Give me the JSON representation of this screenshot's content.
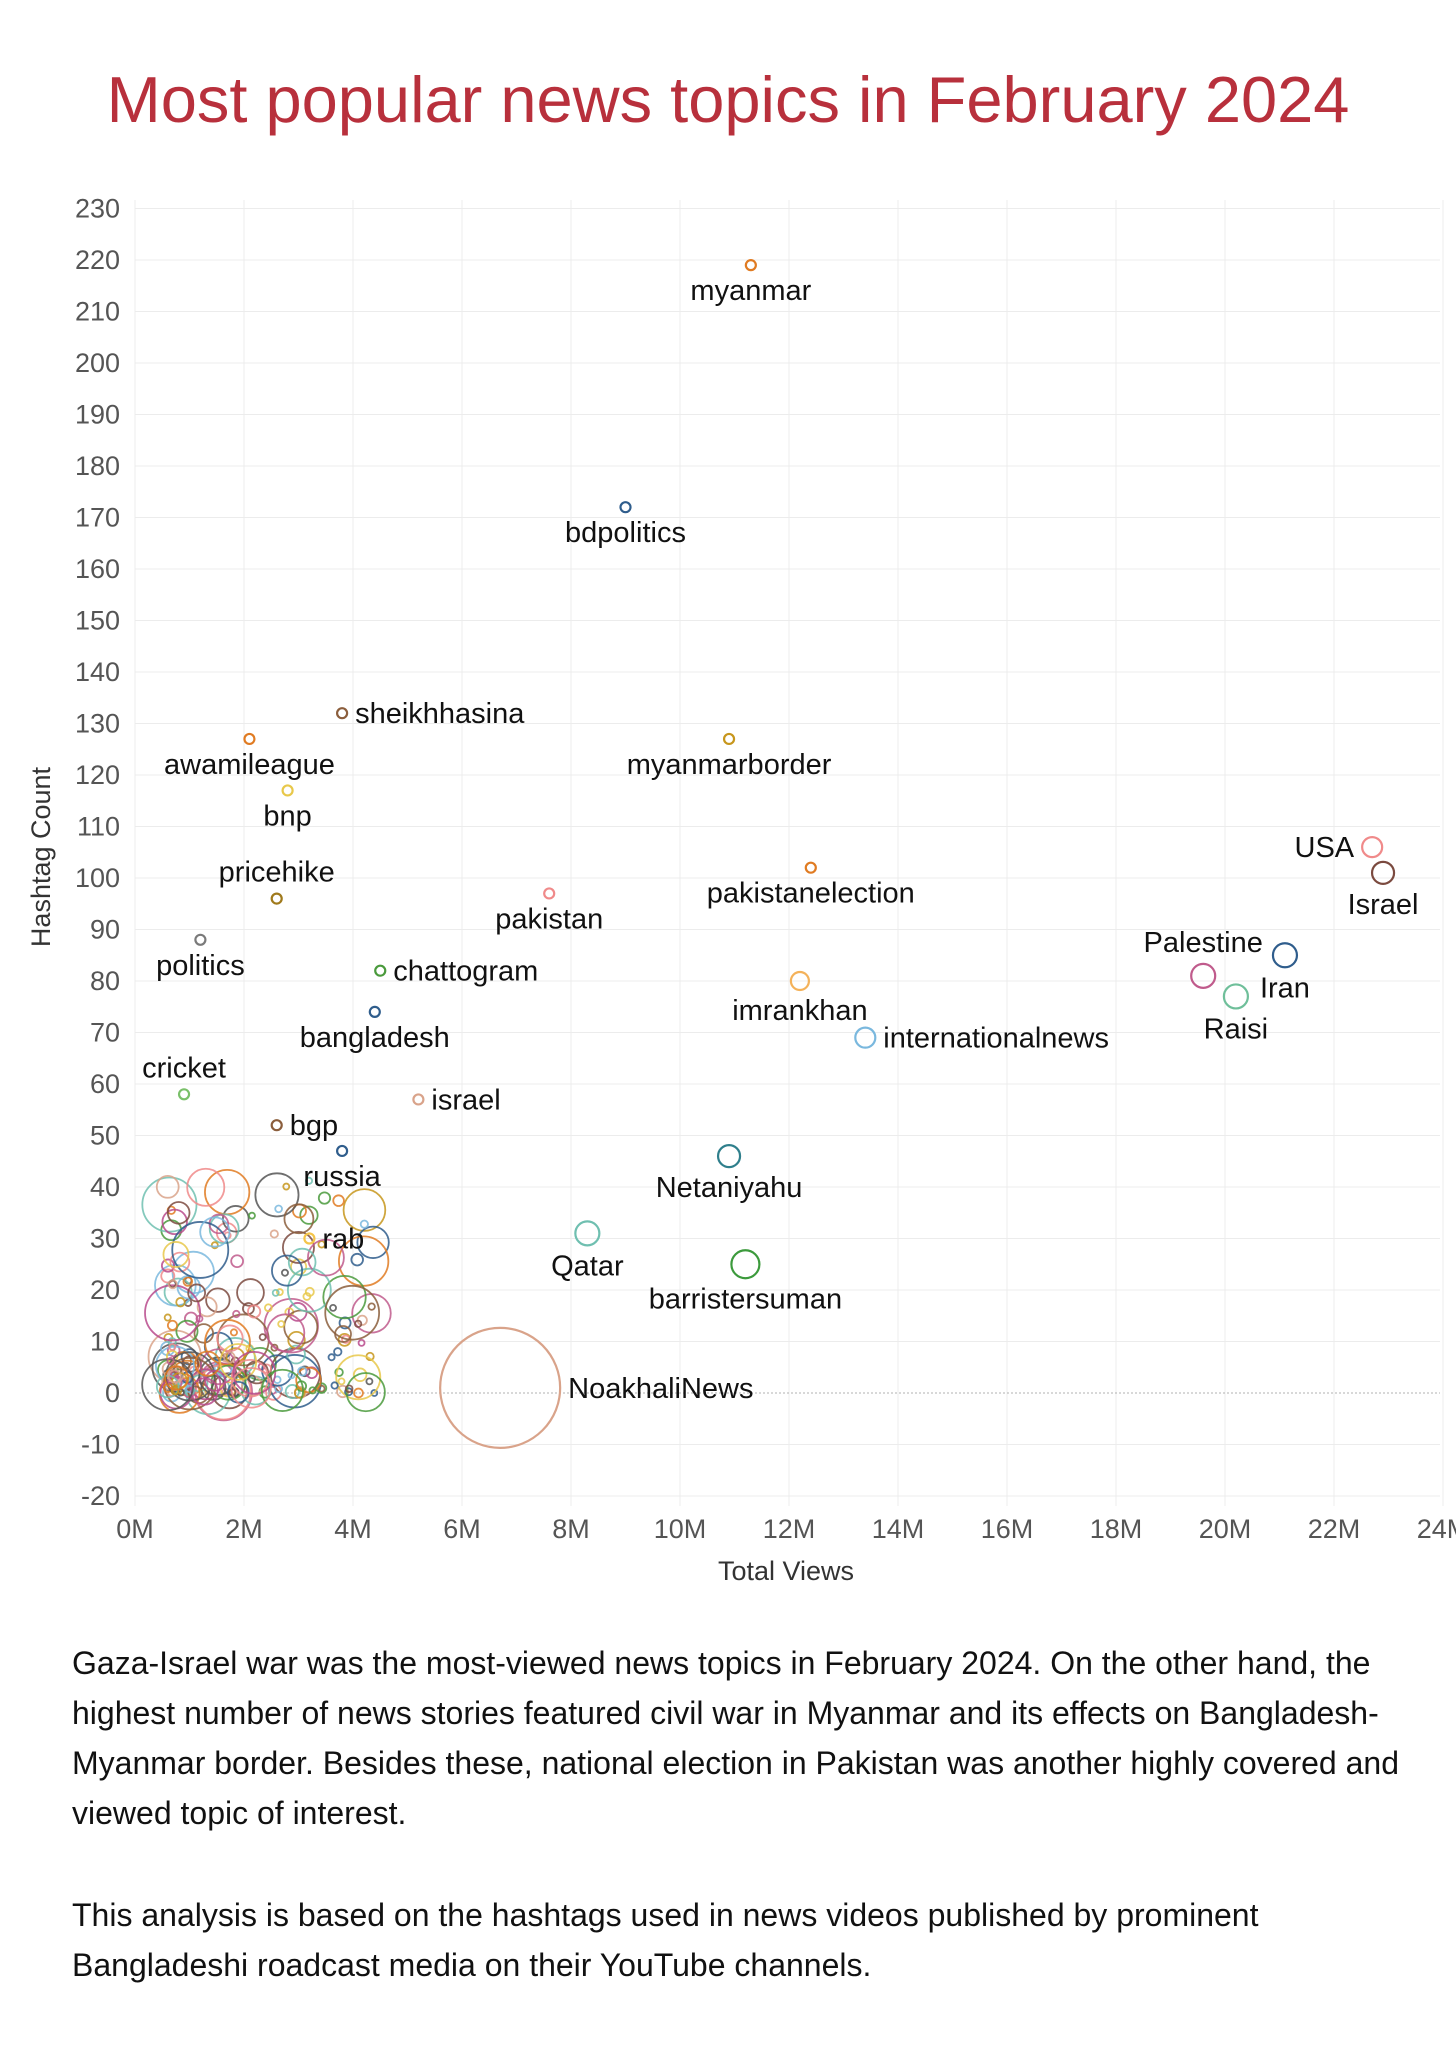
{
  "title": "Most popular news topics in February 2024",
  "description": [
    "Gaza-Israel war was the most-viewed news topics in February 2024. On the other hand, the highest number of news stories featured civil war in Myanmar and its effects on Bangladesh-Myanmar border. Besides these, national election in Pakistan was another highly covered and viewed topic of interest.",
    "This analysis is based on the hashtags used in news videos published by prominent Bangladeshi roadcast media on their YouTube channels."
  ],
  "chart_data": {
    "type": "scatter",
    "title": "Most popular news topics in February 2024",
    "xlabel": "Total Views",
    "ylabel": "Hashtag Count",
    "xlim": [
      0,
      24000000
    ],
    "ylim": [
      -20,
      230
    ],
    "xticks": [
      0,
      2000000,
      4000000,
      6000000,
      8000000,
      10000000,
      12000000,
      14000000,
      16000000,
      18000000,
      20000000,
      22000000,
      24000000
    ],
    "xtick_labels": [
      "0M",
      "2M",
      "4M",
      "6M",
      "8M",
      "10M",
      "12M",
      "14M",
      "16M",
      "18M",
      "20M",
      "22M",
      "24M"
    ],
    "yticks": [
      -20,
      -10,
      0,
      10,
      20,
      30,
      40,
      50,
      60,
      70,
      80,
      90,
      100,
      110,
      120,
      130,
      140,
      150,
      160,
      170,
      180,
      190,
      200,
      210,
      220,
      230
    ],
    "grid": true,
    "legend": "none",
    "labeled_points": [
      {
        "label": "myanmar",
        "x": 11300000,
        "y": 219,
        "color": "#e07b22",
        "label_pos": "below"
      },
      {
        "label": "bdpolitics",
        "x": 9000000,
        "y": 172,
        "color": "#2f5d8c",
        "label_pos": "below"
      },
      {
        "label": "sheikhhasina",
        "x": 3800000,
        "y": 132,
        "color": "#8b5e3c",
        "label_pos": "right"
      },
      {
        "label": "myanmarborder",
        "x": 10900000,
        "y": 127,
        "color": "#c7961c",
        "label_pos": "below"
      },
      {
        "label": "awamileague",
        "x": 2100000,
        "y": 127,
        "color": "#e07b22",
        "label_pos": "below"
      },
      {
        "label": "bnp",
        "x": 2800000,
        "y": 117,
        "color": "#e8c84a",
        "label_pos": "below"
      },
      {
        "label": "USA",
        "x": 22700000,
        "y": 106,
        "color": "#f08a8a",
        "label_pos": "left"
      },
      {
        "label": "pakistanelection",
        "x": 12400000,
        "y": 102,
        "color": "#e07b22",
        "label_pos": "below"
      },
      {
        "label": "Israel",
        "x": 22900000,
        "y": 101,
        "color": "#7b4a3f",
        "label_pos": "below"
      },
      {
        "label": "pricehike",
        "x": 2600000,
        "y": 96,
        "color": "#a07a1c",
        "label_pos": "above"
      },
      {
        "label": "pakistan",
        "x": 7600000,
        "y": 97,
        "color": "#f08a8a",
        "label_pos": "below"
      },
      {
        "label": "politics",
        "x": 1200000,
        "y": 88,
        "color": "#7a7a7a",
        "label_pos": "below"
      },
      {
        "label": "Palestine",
        "x": 19600000,
        "y": 81,
        "color": "#c05b8c",
        "label_pos": "above"
      },
      {
        "label": "Iran",
        "x": 21100000,
        "y": 85,
        "color": "#2f5d8c",
        "label_pos": "below"
      },
      {
        "label": "chattogram",
        "x": 4500000,
        "y": 82,
        "color": "#4a9a3c",
        "label_pos": "right"
      },
      {
        "label": "imrankhan",
        "x": 12200000,
        "y": 80,
        "color": "#f4b25a",
        "label_pos": "below"
      },
      {
        "label": "Raisi",
        "x": 20200000,
        "y": 77,
        "color": "#6fbf9a",
        "label_pos": "below"
      },
      {
        "label": "bangladesh",
        "x": 4400000,
        "y": 74,
        "color": "#2f5d8c",
        "label_pos": "below"
      },
      {
        "label": "internationalnews",
        "x": 13400000,
        "y": 69,
        "color": "#7ab8de",
        "label_pos": "right"
      },
      {
        "label": "cricket",
        "x": 900000,
        "y": 58,
        "color": "#7ac06a",
        "label_pos": "above"
      },
      {
        "label": "israel",
        "x": 5200000,
        "y": 57,
        "color": "#d9a38a",
        "label_pos": "right"
      },
      {
        "label": "bgp",
        "x": 2600000,
        "y": 52,
        "color": "#8b5e3c",
        "label_pos": "right"
      },
      {
        "label": "Netaniyahu",
        "x": 10900000,
        "y": 46,
        "color": "#2f7f8c",
        "label_pos": "below"
      },
      {
        "label": "russia",
        "x": 3800000,
        "y": 47,
        "color": "#2f5d8c",
        "label_pos": "below"
      },
      {
        "label": "rab",
        "x": 3200000,
        "y": 30,
        "color": "#f4c54a",
        "label_pos": "right"
      },
      {
        "label": "Qatar",
        "x": 8300000,
        "y": 31,
        "color": "#6fbfb0",
        "label_pos": "below"
      },
      {
        "label": "barristersuman",
        "x": 11200000,
        "y": 25,
        "color": "#3c9a3c",
        "label_pos": "below"
      },
      {
        "label": "NoakhaliNews",
        "x": 6700000,
        "y": 1,
        "color": "#d9a38a",
        "label_pos": "right"
      }
    ]
  }
}
